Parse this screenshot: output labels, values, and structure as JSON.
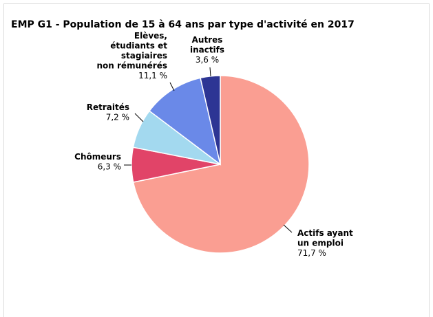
{
  "chart_data": {
    "type": "pie",
    "title": "EMP G1 - Population de 15 à 64 ans par type d'activité en 2017",
    "slices": [
      {
        "label_lines": [
          "Actifs ayant",
          "un emploi"
        ],
        "value": 71.7,
        "value_label": "71,7 %",
        "color": "#fa9e92"
      },
      {
        "label_lines": [
          "Chômeurs"
        ],
        "value": 6.3,
        "value_label": "6,3 %",
        "color": "#e14468"
      },
      {
        "label_lines": [
          "Retraités"
        ],
        "value": 7.2,
        "value_label": "7,2 %",
        "color": "#a3d9ef"
      },
      {
        "label_lines": [
          "Elèves,",
          "étudiants et",
          "stagiaires",
          "non rémunérés"
        ],
        "value": 11.1,
        "value_label": "11,1 %",
        "color": "#6a89e8"
      },
      {
        "label_lines": [
          "Autres",
          "inactifs"
        ],
        "value": 3.6,
        "value_label": "3,6 %",
        "color": "#2d3594"
      }
    ]
  }
}
